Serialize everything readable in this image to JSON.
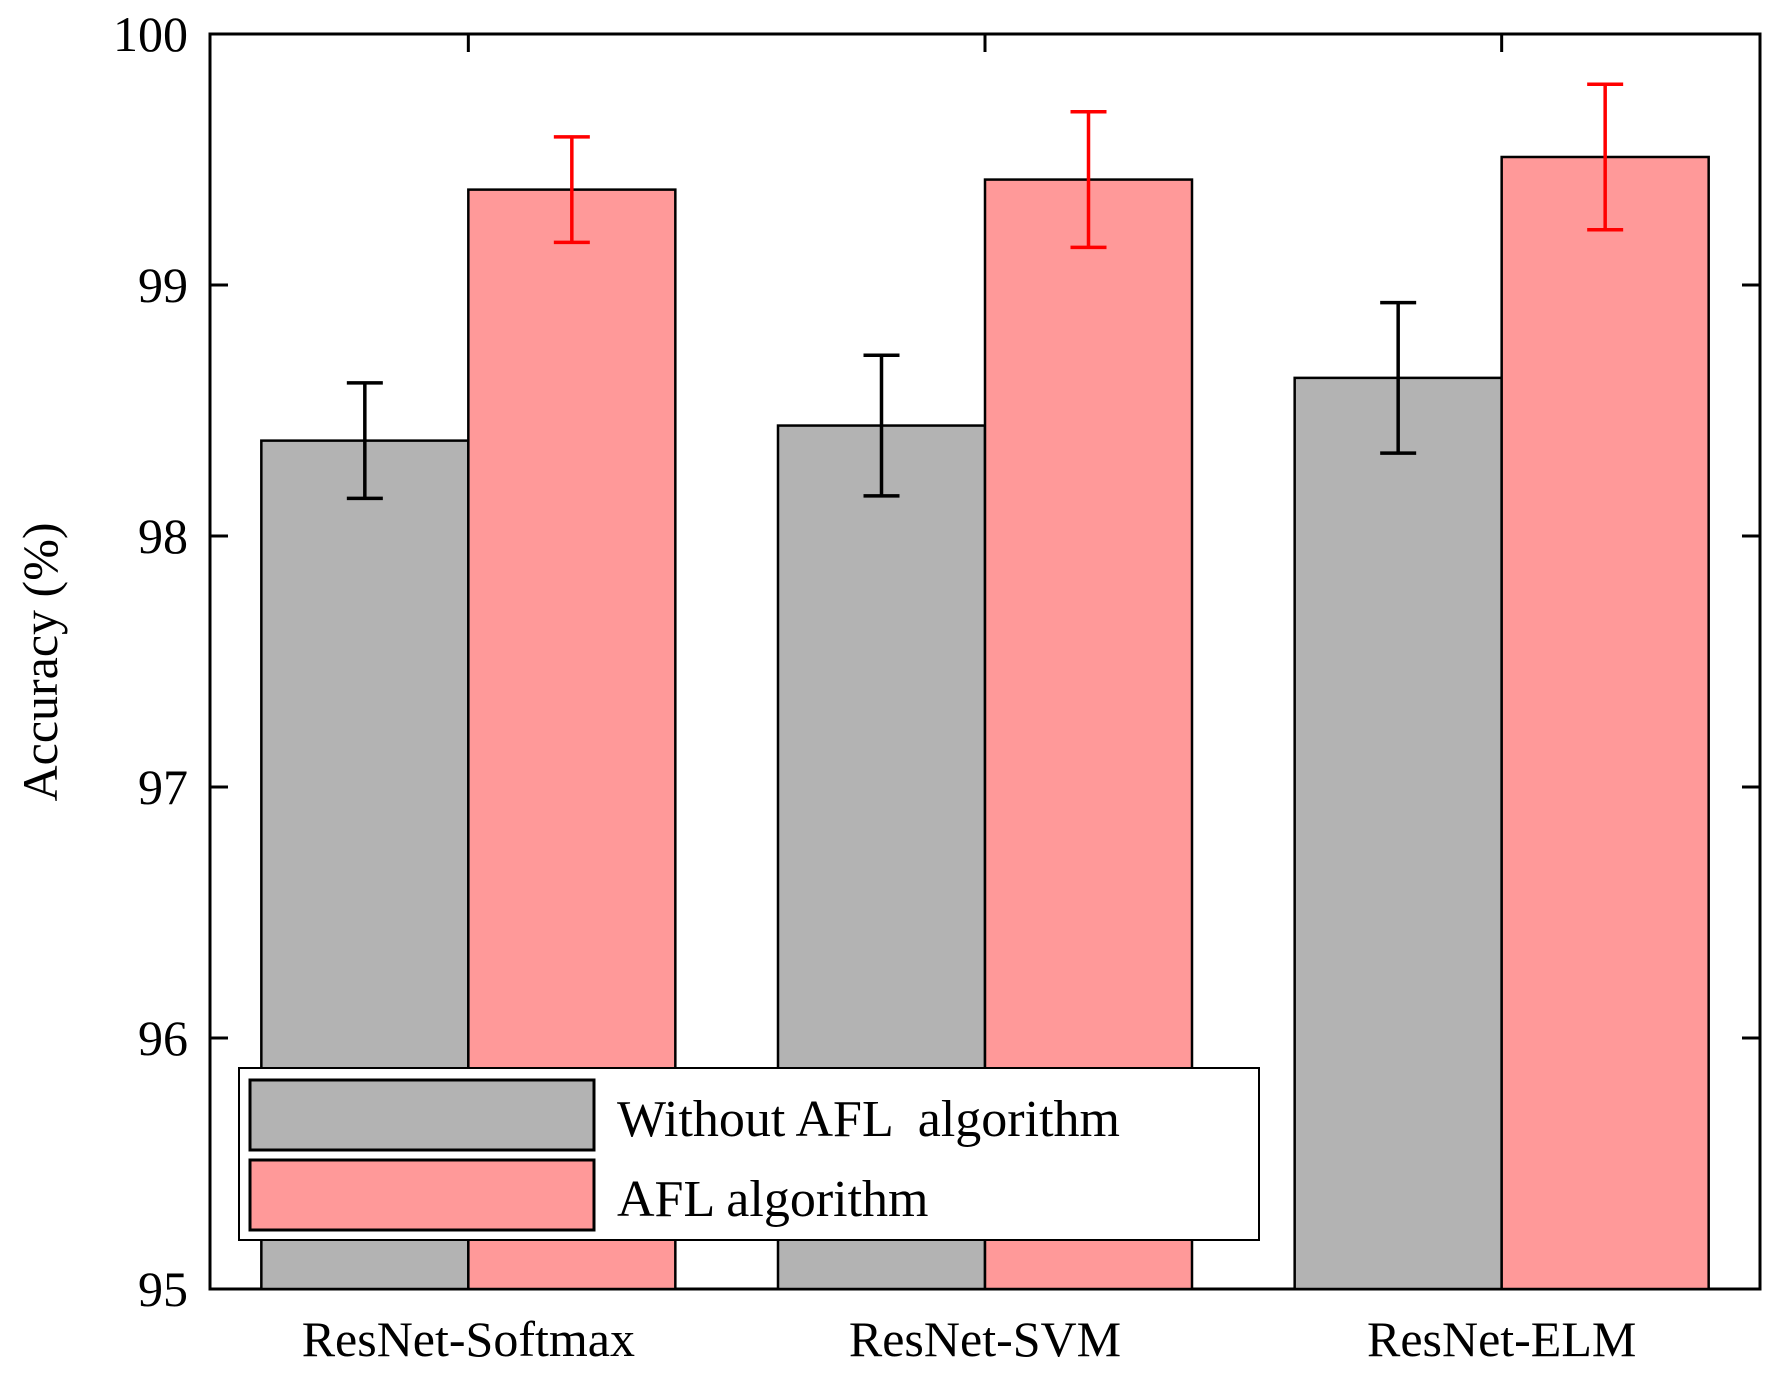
{
  "chart_data": {
    "type": "bar",
    "title": "",
    "xlabel": "",
    "ylabel": "Accuracy (%)",
    "ylim": [
      95,
      100
    ],
    "yticks": [
      95,
      96,
      97,
      98,
      99,
      100
    ],
    "ytick_labels": [
      "95",
      "96",
      "97",
      "98",
      "99",
      "100"
    ],
    "categories": [
      "ResNet-Softmax",
      "ResNet-SVM",
      "ResNet-ELM"
    ],
    "series": [
      {
        "name": "Without AFL  algorithm",
        "color": "#b3b3b3",
        "error_color": "#000000",
        "values": [
          98.38,
          98.44,
          98.63
        ],
        "errors": [
          0.23,
          0.28,
          0.3
        ]
      },
      {
        "name": "AFL algorithm",
        "color": "#ff9999",
        "error_color": "#ff0000",
        "values": [
          99.38,
          99.42,
          99.51
        ],
        "errors": [
          0.21,
          0.27,
          0.29
        ]
      }
    ],
    "legend": {
      "position": "bottom-left",
      "entries": [
        "Without AFL  algorithm",
        "AFL algorithm"
      ]
    },
    "grid": false
  }
}
